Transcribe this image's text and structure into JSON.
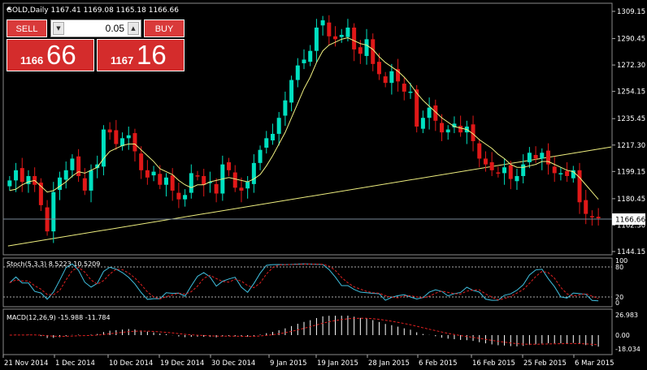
{
  "symbol_header": "GOLD,Daily  1167.41 1169.08 1165.18 1166.66",
  "trade_panel": {
    "sell_label": "SELL",
    "buy_label": "BUY",
    "lot_value": "0.05",
    "sell_price_small": "1166",
    "sell_price_big": "66",
    "buy_price_small": "1167",
    "buy_price_big": "16"
  },
  "price_axis": {
    "ticks": [
      "1309.15",
      "1290.45",
      "1272.30",
      "1254.15",
      "1235.45",
      "1217.30",
      "1199.15",
      "1180.45",
      "1162.30",
      "1144.15"
    ],
    "current_price_label": "1166.66"
  },
  "stoch_panel": {
    "header": "Stoch(5,3,3) 8.5223 10.5209",
    "ticks": [
      "100",
      "80",
      "20",
      "0"
    ]
  },
  "macd_panel": {
    "header": "MACD(12,26,9) -15.988 -11.784",
    "ticks": [
      "26.983",
      "0.00",
      "-18.034"
    ]
  },
  "date_axis": {
    "labels": [
      "21 Nov 2014",
      "1 Dec 2014",
      "10 Dec 2014",
      "19 Dec 2014",
      "30 Dec 2014",
      "9 Jan 2015",
      "19 Jan 2015",
      "28 Jan 2015",
      "6 Feb 2015",
      "16 Feb 2015",
      "25 Feb 2015",
      "6 Mar 2015"
    ]
  },
  "colors": {
    "background": "#000000",
    "bull_candle": "#00e0c0",
    "bear_candle": "#e01818",
    "moving_average": "#f0f080",
    "trendline": "#f0f080",
    "stoch_main": "#40c0e0",
    "stoch_signal": "#e02020",
    "macd_histogram": "#ffffff",
    "macd_signal": "#e02020",
    "accent": "#d93a3a"
  },
  "chart_data": {
    "type": "candlestick",
    "price_range": [
      1144.15,
      1309.15
    ],
    "closes": [
      1193,
      1200,
      1192,
      1196,
      1190,
      1176,
      1158,
      1185,
      1195,
      1200,
      1208,
      1196,
      1186,
      1200,
      1204,
      1228,
      1226,
      1218,
      1222,
      1224,
      1213,
      1200,
      1195,
      1199,
      1190,
      1195,
      1186,
      1180,
      1183,
      1198,
      1196,
      1190,
      1192,
      1184,
      1204,
      1200,
      1188,
      1186,
      1192,
      1205,
      1214,
      1222,
      1225,
      1236,
      1248,
      1262,
      1272,
      1276,
      1282,
      1298,
      1303,
      1292,
      1290,
      1293,
      1298,
      1283,
      1280,
      1290,
      1273,
      1266,
      1260,
      1268,
      1261,
      1254,
      1254,
      1230,
      1236,
      1243,
      1234,
      1226,
      1228,
      1232,
      1226,
      1230,
      1220,
      1208,
      1204,
      1200,
      1198,
      1202,
      1194,
      1196,
      1204,
      1212,
      1208,
      1212,
      1204,
      1198,
      1198,
      1196,
      1200,
      1178,
      1170,
      1168,
      1167
    ],
    "moving_average": [
      1186,
      1187,
      1190,
      1192,
      1193,
      1189,
      1185,
      1186,
      1189,
      1192,
      1196,
      1199,
      1198,
      1200,
      1202,
      1208,
      1213,
      1215,
      1217,
      1218,
      1218,
      1214,
      1210,
      1206,
      1201,
      1199,
      1197,
      1193,
      1190,
      1188,
      1190,
      1190,
      1192,
      1193,
      1194,
      1195,
      1194,
      1193,
      1192,
      1194,
      1197,
      1203,
      1210,
      1218,
      1226,
      1236,
      1246,
      1256,
      1264,
      1274,
      1282,
      1286,
      1288,
      1290,
      1291,
      1289,
      1287,
      1286,
      1283,
      1278,
      1274,
      1271,
      1268,
      1264,
      1259,
      1253,
      1248,
      1244,
      1240,
      1236,
      1233,
      1230,
      1229,
      1228,
      1225,
      1221,
      1218,
      1215,
      1211,
      1208,
      1204,
      1202,
      1202,
      1203,
      1204,
      1206,
      1206,
      1204,
      1202,
      1200,
      1199,
      1195,
      1190,
      1185,
      1180
    ],
    "trendline": {
      "start_price": 1148,
      "end_price": 1216
    }
  }
}
